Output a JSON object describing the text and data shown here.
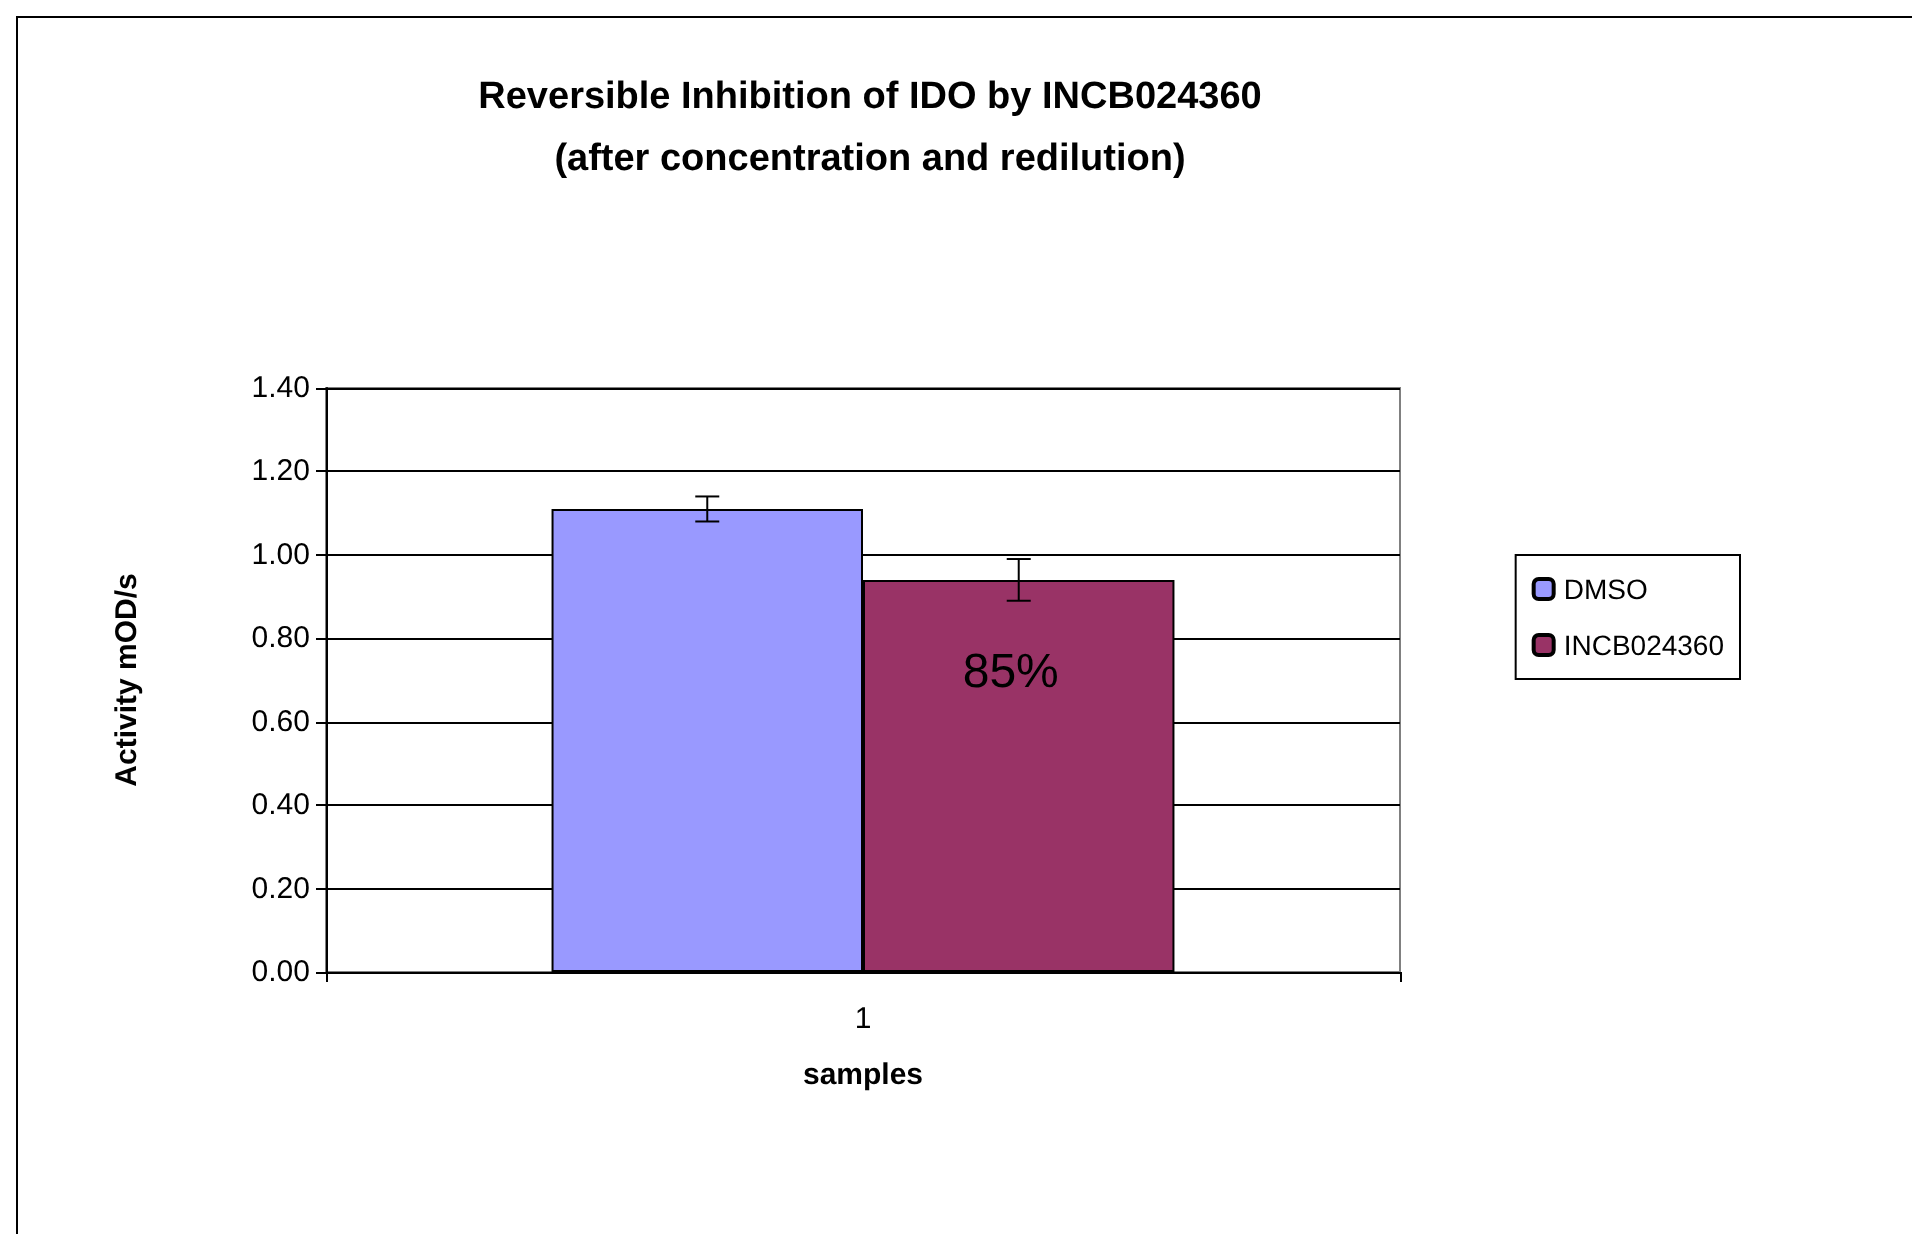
{
  "chart_data": {
    "type": "bar",
    "title": "Reversible Inhibition of IDO by INCB024360\n(after concentration and redilution)",
    "xlabel": "samples",
    "ylabel": "Activity mOD/s",
    "categories": [
      "1"
    ],
    "series": [
      {
        "name": "DMSO",
        "color": "#9999ff",
        "values": [
          1.11
        ],
        "errors": [
          0.03
        ]
      },
      {
        "name": "INCB024360",
        "color": "#993366",
        "values": [
          0.94
        ],
        "errors": [
          0.05
        ]
      }
    ],
    "ylim": [
      0,
      1.4
    ],
    "yticks": [
      {
        "value": 0,
        "label": "0.00"
      },
      {
        "value": 0.2,
        "label": "0.20"
      },
      {
        "value": 0.4,
        "label": "0.40"
      },
      {
        "value": 0.6,
        "label": "0.60"
      },
      {
        "value": 0.8,
        "label": "0.80"
      },
      {
        "value": 1.0,
        "label": "1.00"
      },
      {
        "value": 1.2,
        "label": "1.20"
      },
      {
        "value": 1.4,
        "label": "1.40"
      }
    ],
    "grid": "y",
    "legend": "right",
    "annotations": [
      "85%"
    ]
  }
}
